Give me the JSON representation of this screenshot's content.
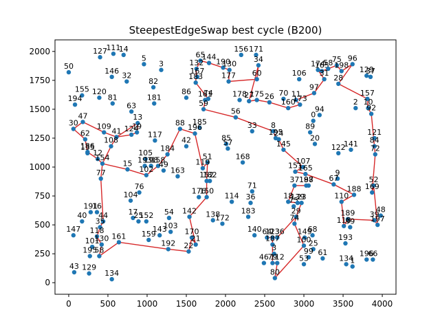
{
  "chart_data": {
    "type": "scatter",
    "title": "SteepestEdgeSwap best cycle (B200)",
    "xlabel": "",
    "ylabel": "",
    "xlim": [
      -175,
      4175
    ],
    "ylim": [
      -100,
      2100
    ],
    "xticks": [
      0,
      500,
      1000,
      1500,
      2000,
      2500,
      3000,
      3500,
      4000
    ],
    "yticks": [
      0,
      250,
      500,
      750,
      1000,
      1250,
      1500,
      1750,
      2000
    ],
    "grid": false,
    "colors": {
      "points": "#1f77b4",
      "cycle": "#d62728"
    },
    "points": [
      {
        "id": "50",
        "x": 0,
        "y": 1820
      },
      {
        "id": "127",
        "x": 400,
        "y": 1950
      },
      {
        "id": "111",
        "x": 570,
        "y": 1980
      },
      {
        "id": "14",
        "x": 700,
        "y": 1970
      },
      {
        "id": "5",
        "x": 960,
        "y": 1890
      },
      {
        "id": "3",
        "x": 1180,
        "y": 1840
      },
      {
        "id": "65",
        "x": 1680,
        "y": 1920
      },
      {
        "id": "144",
        "x": 1790,
        "y": 1900
      },
      {
        "id": "156",
        "x": 2200,
        "y": 1970
      },
      {
        "id": "171",
        "x": 2390,
        "y": 1970
      },
      {
        "id": "34",
        "x": 2420,
        "y": 1880
      },
      {
        "id": "190",
        "x": 1970,
        "y": 1860
      },
      {
        "id": "130",
        "x": 2050,
        "y": 1840
      },
      {
        "id": "132",
        "x": 1630,
        "y": 1850
      },
      {
        "id": "177",
        "x": 2040,
        "y": 1740
      },
      {
        "id": "60",
        "x": 2400,
        "y": 1760
      },
      {
        "id": "146",
        "x": 550,
        "y": 1780
      },
      {
        "id": "32",
        "x": 740,
        "y": 1740
      },
      {
        "id": "167",
        "x": 1640,
        "y": 1780
      },
      {
        "id": "183",
        "x": 1620,
        "y": 1730
      },
      {
        "id": "82",
        "x": 1080,
        "y": 1690
      },
      {
        "id": "86",
        "x": 1500,
        "y": 1600
      },
      {
        "id": "155",
        "x": 170,
        "y": 1620
      },
      {
        "id": "120",
        "x": 390,
        "y": 1600
      },
      {
        "id": "181",
        "x": 1090,
        "y": 1550
      },
      {
        "id": "74",
        "x": 1780,
        "y": 1590
      },
      {
        "id": "161",
        "x": 1740,
        "y": 1580
      },
      {
        "id": "194",
        "x": 80,
        "y": 1540
      },
      {
        "id": "81",
        "x": 560,
        "y": 1550
      },
      {
        "id": "59",
        "x": 1720,
        "y": 1500
      },
      {
        "id": "106",
        "x": 2940,
        "y": 1760
      },
      {
        "id": "70",
        "x": 2740,
        "y": 1590
      },
      {
        "id": "11",
        "x": 2900,
        "y": 1580
      },
      {
        "id": "178",
        "x": 2180,
        "y": 1580
      },
      {
        "id": "27",
        "x": 2300,
        "y": 1570
      },
      {
        "id": "175",
        "x": 2400,
        "y": 1580
      },
      {
        "id": "26",
        "x": 2560,
        "y": 1560
      },
      {
        "id": "160",
        "x": 2800,
        "y": 1510
      },
      {
        "id": "173",
        "x": 2950,
        "y": 1540
      },
      {
        "id": "63",
        "x": 800,
        "y": 1480
      },
      {
        "id": "56",
        "x": 2130,
        "y": 1430
      },
      {
        "id": "47",
        "x": 180,
        "y": 1390
      },
      {
        "id": "30",
        "x": 60,
        "y": 1330
      },
      {
        "id": "13",
        "x": 880,
        "y": 1380
      },
      {
        "id": "109",
        "x": 450,
        "y": 1300
      },
      {
        "id": "41",
        "x": 610,
        "y": 1260
      },
      {
        "id": "124",
        "x": 800,
        "y": 1280
      },
      {
        "id": "19",
        "x": 870,
        "y": 1300
      },
      {
        "id": "185",
        "x": 1670,
        "y": 1340
      },
      {
        "id": "196",
        "x": 1610,
        "y": 1290
      },
      {
        "id": "88",
        "x": 1420,
        "y": 1330
      },
      {
        "id": "33",
        "x": 2340,
        "y": 1310
      },
      {
        "id": "8",
        "x": 2610,
        "y": 1310
      },
      {
        "id": "195",
        "x": 2640,
        "y": 1250
      },
      {
        "id": "24",
        "x": 2680,
        "y": 1240
      },
      {
        "id": "62",
        "x": 210,
        "y": 1240
      },
      {
        "id": "117",
        "x": 1100,
        "y": 1230
      },
      {
        "id": "0",
        "x": 3120,
        "y": 1400
      },
      {
        "id": "94",
        "x": 3200,
        "y": 1450
      },
      {
        "id": "89",
        "x": 3080,
        "y": 1300
      },
      {
        "id": "108",
        "x": 540,
        "y": 1180
      },
      {
        "id": "42",
        "x": 1500,
        "y": 1180
      },
      {
        "id": "85",
        "x": 2010,
        "y": 1200
      },
      {
        "id": "57",
        "x": 2030,
        "y": 1160
      },
      {
        "id": "20",
        "x": 3140,
        "y": 1200
      },
      {
        "id": "145",
        "x": 2740,
        "y": 1150
      },
      {
        "id": "184",
        "x": 1260,
        "y": 1110
      },
      {
        "id": "186",
        "x": 240,
        "y": 1130
      },
      {
        "id": "135",
        "x": 240,
        "y": 1120
      },
      {
        "id": "12",
        "x": 370,
        "y": 1070
      },
      {
        "id": "154",
        "x": 430,
        "y": 1030
      },
      {
        "id": "105",
        "x": 980,
        "y": 1070
      },
      {
        "id": "193",
        "x": 970,
        "y": 1010
      },
      {
        "id": "198",
        "x": 1050,
        "y": 1010
      },
      {
        "id": "158",
        "x": 1140,
        "y": 1010
      },
      {
        "id": "49",
        "x": 1210,
        "y": 970
      },
      {
        "id": "15",
        "x": 750,
        "y": 980
      },
      {
        "id": "51",
        "x": 1770,
        "y": 1040
      },
      {
        "id": "119",
        "x": 1710,
        "y": 990
      },
      {
        "id": "168",
        "x": 2220,
        "y": 1040
      },
      {
        "id": "141",
        "x": 3600,
        "y": 1150
      },
      {
        "id": "122",
        "x": 3440,
        "y": 1120
      },
      {
        "id": "121",
        "x": 3900,
        "y": 1250
      },
      {
        "id": "84",
        "x": 3900,
        "y": 1180
      },
      {
        "id": "72",
        "x": 3910,
        "y": 1110
      },
      {
        "id": "107",
        "x": 2990,
        "y": 1000
      },
      {
        "id": "151",
        "x": 2890,
        "y": 960
      },
      {
        "id": "165",
        "x": 3020,
        "y": 940
      },
      {
        "id": "9",
        "x": 3430,
        "y": 900
      },
      {
        "id": "77",
        "x": 410,
        "y": 900
      },
      {
        "id": "102",
        "x": 990,
        "y": 930
      },
      {
        "id": "163",
        "x": 1390,
        "y": 920
      },
      {
        "id": "152",
        "x": 1760,
        "y": 880
      },
      {
        "id": "182",
        "x": 1800,
        "y": 880
      },
      {
        "id": "37",
        "x": 2880,
        "y": 840
      },
      {
        "id": "187",
        "x": 3030,
        "y": 840
      },
      {
        "id": "98",
        "x": 3060,
        "y": 840
      },
      {
        "id": "67",
        "x": 3380,
        "y": 850
      },
      {
        "id": "71",
        "x": 2340,
        "y": 790
      },
      {
        "id": "76",
        "x": 900,
        "y": 780
      },
      {
        "id": "104",
        "x": 790,
        "y": 710
      },
      {
        "id": "176",
        "x": 1660,
        "y": 740
      },
      {
        "id": "150",
        "x": 1760,
        "y": 740
      },
      {
        "id": "114",
        "x": 2080,
        "y": 700
      },
      {
        "id": "36",
        "x": 2320,
        "y": 690
      },
      {
        "id": "18",
        "x": 2800,
        "y": 700
      },
      {
        "id": "75",
        "x": 2870,
        "y": 660
      },
      {
        "id": "139",
        "x": 2920,
        "y": 690
      },
      {
        "id": "23",
        "x": 2970,
        "y": 690
      },
      {
        "id": "188",
        "x": 3640,
        "y": 760
      },
      {
        "id": "110",
        "x": 3480,
        "y": 700
      },
      {
        "id": "52",
        "x": 3890,
        "y": 840
      },
      {
        "id": "169",
        "x": 3870,
        "y": 780
      },
      {
        "id": "191",
        "x": 280,
        "y": 610
      },
      {
        "id": "16",
        "x": 360,
        "y": 610
      },
      {
        "id": "40",
        "x": 170,
        "y": 530
      },
      {
        "id": "44",
        "x": 440,
        "y": 530
      },
      {
        "id": "35",
        "x": 400,
        "y": 480
      },
      {
        "id": "17",
        "x": 820,
        "y": 560
      },
      {
        "id": "25",
        "x": 890,
        "y": 530
      },
      {
        "id": "152b",
        "x": 990,
        "y": 530
      },
      {
        "id": "54",
        "x": 1280,
        "y": 560
      },
      {
        "id": "142",
        "x": 1540,
        "y": 570
      },
      {
        "id": "183b",
        "x": 2290,
        "y": 570
      },
      {
        "id": "29",
        "x": 2900,
        "y": 570
      },
      {
        "id": "74b",
        "x": 2880,
        "y": 510
      },
      {
        "id": "189",
        "x": 3560,
        "y": 550
      },
      {
        "id": "39",
        "x": 3900,
        "y": 540
      },
      {
        "id": "48",
        "x": 3980,
        "y": 580
      },
      {
        "id": "197",
        "x": 3940,
        "y": 500
      },
      {
        "id": "118",
        "x": 3510,
        "y": 490
      },
      {
        "id": "99",
        "x": 3590,
        "y": 480
      },
      {
        "id": "138",
        "x": 1840,
        "y": 540
      },
      {
        "id": "172",
        "x": 1960,
        "y": 510
      },
      {
        "id": "143",
        "x": 1160,
        "y": 410
      },
      {
        "id": "103",
        "x": 1300,
        "y": 440
      },
      {
        "id": "140",
        "x": 2370,
        "y": 410
      },
      {
        "id": "147",
        "x": 60,
        "y": 410
      },
      {
        "id": "118b",
        "x": 360,
        "y": 400
      },
      {
        "id": "159",
        "x": 1020,
        "y": 370
      },
      {
        "id": "170",
        "x": 1570,
        "y": 390
      },
      {
        "id": "21",
        "x": 1620,
        "y": 330
      },
      {
        "id": "64",
        "x": 2530,
        "y": 390
      },
      {
        "id": "123",
        "x": 2600,
        "y": 390
      },
      {
        "id": "136",
        "x": 2660,
        "y": 390
      },
      {
        "id": "149",
        "x": 3010,
        "y": 390
      },
      {
        "id": "68",
        "x": 3110,
        "y": 410
      },
      {
        "id": "161b",
        "x": 640,
        "y": 350
      },
      {
        "id": "130b",
        "x": 420,
        "y": 330
      },
      {
        "id": "101",
        "x": 300,
        "y": 310
      },
      {
        "id": "192",
        "x": 1270,
        "y": 290
      },
      {
        "id": "22",
        "x": 1530,
        "y": 270
      },
      {
        "id": "187b",
        "x": 2600,
        "y": 330
      },
      {
        "id": "100",
        "x": 3000,
        "y": 320
      },
      {
        "id": "25b",
        "x": 3120,
        "y": 290
      },
      {
        "id": "193b",
        "x": 3530,
        "y": 340
      },
      {
        "id": "195b",
        "x": 270,
        "y": 230
      },
      {
        "id": "58b",
        "x": 390,
        "y": 230
      },
      {
        "id": "3b",
        "x": 2620,
        "y": 250
      },
      {
        "id": "99b",
        "x": 3060,
        "y": 220
      },
      {
        "id": "61",
        "x": 3240,
        "y": 210
      },
      {
        "id": "196b",
        "x": 3800,
        "y": 200
      },
      {
        "id": "66",
        "x": 3880,
        "y": 200
      },
      {
        "id": "46",
        "x": 2490,
        "y": 170
      },
      {
        "id": "79",
        "x": 2600,
        "y": 170
      },
      {
        "id": "112",
        "x": 2660,
        "y": 170
      },
      {
        "id": "53",
        "x": 3000,
        "y": 160
      },
      {
        "id": "134",
        "x": 3540,
        "y": 160
      },
      {
        "id": "1",
        "x": 3620,
        "y": 140
      },
      {
        "id": "43",
        "x": 70,
        "y": 90
      },
      {
        "id": "129",
        "x": 260,
        "y": 80
      },
      {
        "id": "134b",
        "x": 550,
        "y": 30
      },
      {
        "id": "80",
        "x": 2630,
        "y": 40
      },
      {
        "id": "174",
        "x": 3180,
        "y": 1840
      },
      {
        "id": "165b",
        "x": 3230,
        "y": 1830
      },
      {
        "id": "58",
        "x": 3310,
        "y": 1850
      },
      {
        "id": "75b",
        "x": 3420,
        "y": 1880
      },
      {
        "id": "198b",
        "x": 3480,
        "y": 1830
      },
      {
        "id": "96",
        "x": 3620,
        "y": 1890
      },
      {
        "id": "31",
        "x": 3260,
        "y": 1760
      },
      {
        "id": "28",
        "x": 3440,
        "y": 1720
      },
      {
        "id": "129b",
        "x": 3800,
        "y": 1790
      },
      {
        "id": "37b",
        "x": 3850,
        "y": 1780
      },
      {
        "id": "97",
        "x": 3130,
        "y": 1640
      },
      {
        "id": "157",
        "x": 3810,
        "y": 1590
      },
      {
        "id": "2",
        "x": 3660,
        "y": 1510
      },
      {
        "id": "10",
        "x": 3820,
        "y": 1510
      },
      {
        "id": "92",
        "x": 3860,
        "y": 1460
      }
    ],
    "labels": {
      "50": "50",
      "127": "127",
      "111": "111",
      "14": "14",
      "5": "5",
      "3": "3",
      "65": "65",
      "144": "144",
      "156": "156",
      "171": "171",
      "34": "34",
      "190": "190",
      "130": "130",
      "132": "132",
      "177": "177",
      "60": "60",
      "146": "146",
      "32": "32",
      "167": "167",
      "183": "183",
      "82": "82",
      "86": "86",
      "155": "155",
      "120": "120",
      "181": "181",
      "74": "74",
      "161": "161",
      "194": "194",
      "81": "81",
      "59": "59",
      "106": "106",
      "70": "70",
      "11": "11",
      "178": "178",
      "27": "27",
      "175": "175",
      "26": "26",
      "160": "160",
      "173": "173",
      "63": "63",
      "56": "56",
      "47": "47",
      "30": "30",
      "13": "13",
      "109": "109",
      "41": "41",
      "124": "124",
      "19": "19",
      "185": "185",
      "196": "196",
      "88": "88",
      "33": "33",
      "8": "8",
      "195": "195",
      "24": "24",
      "62": "62",
      "117": "117",
      "0": "0",
      "94": "94",
      "89": "89",
      "108": "108",
      "42": "42",
      "85": "85",
      "57": "57",
      "20": "20",
      "145": "145",
      "184": "184",
      "186": "186",
      "135": "135",
      "12": "12",
      "154": "154",
      "105": "105",
      "193": "193",
      "198": "198",
      "158": "158",
      "49": "49",
      "15": "15",
      "51": "51",
      "119": "119",
      "168": "168",
      "141": "141",
      "122": "122",
      "121": "121",
      "84": "84",
      "72": "72",
      "107": "107",
      "151": "151",
      "165": "165",
      "9": "9",
      "77": "77",
      "102": "102",
      "163": "163",
      "152": "152",
      "182": "182",
      "37": "37",
      "187": "187",
      "98": "98",
      "67": "67",
      "71": "71",
      "76": "76",
      "104": "104",
      "176": "176",
      "150": "150",
      "114": "114",
      "36": "36",
      "18": "18",
      "75": "75",
      "139": "139",
      "23": "23",
      "188": "188",
      "110": "110",
      "52": "52",
      "169": "169",
      "191": "191",
      "16": "16",
      "40": "40",
      "44": "44",
      "35": "35",
      "17": "17",
      "25": "25",
      "152b": "152",
      "54": "54",
      "142": "142",
      "183b": "183",
      "29": "29",
      "74b": "74",
      "189": "189",
      "39": "39",
      "48": "48",
      "197": "197",
      "118": "118",
      "99": "99",
      "138": "138",
      "172": "172",
      "143": "143",
      "103": "103",
      "140": "140",
      "147": "147",
      "118b": "118",
      "159": "159",
      "170": "170",
      "21": "21",
      "64": "64",
      "123": "123",
      "136": "136",
      "149": "149",
      "68": "68",
      "161b": "161",
      "130b": "130",
      "101": "101",
      "192": "192",
      "22": "22",
      "187b": "187",
      "100": "100",
      "25b": "25",
      "193b": "193",
      "195b": "195",
      "58b": "58",
      "3b": "3",
      "99b": "99",
      "61": "61",
      "196b": "196",
      "66": "66",
      "46": "46",
      "79": "79",
      "112": "112",
      "53": "53",
      "134": "134",
      "1": "1",
      "43": "43",
      "129": "129",
      "134b": "134",
      "80": "80",
      "174": "174",
      "165b": "165",
      "58": "58",
      "75b": "75",
      "198b": "198",
      "96": "96",
      "31": "31",
      "28": "28",
      "129b": "129",
      "37b": "37",
      "97": "97",
      "157": "157",
      "2": "2",
      "10": "10",
      "92": "92"
    },
    "cycle": [
      "30",
      "47",
      "109",
      "41",
      "124",
      "19",
      "13",
      "41",
      "108",
      "154",
      "77",
      "44",
      "35",
      "118b",
      "130b",
      "58b",
      "161b",
      "192",
      "22",
      "170",
      "21",
      "142",
      "150",
      "152",
      "51",
      "119",
      "196",
      "88",
      "184",
      "158",
      "102",
      "15",
      "154",
      "12",
      "186",
      "62",
      "30"
    ],
    "cycle2": [
      "65",
      "144",
      "190",
      "130",
      "177",
      "60",
      "34",
      "27",
      "175",
      "26",
      "160",
      "173",
      "11",
      "97",
      "31",
      "174",
      "165b",
      "58",
      "75b",
      "198b",
      "96",
      "28",
      "157",
      "10",
      "92",
      "84",
      "72",
      "169",
      "52",
      "197",
      "39",
      "189",
      "118",
      "110",
      "188",
      "67",
      "165",
      "151",
      "107",
      "145",
      "24",
      "195",
      "8",
      "56",
      "59",
      "161",
      "74",
      "183",
      "132",
      "65"
    ],
    "cycle3": [
      "187",
      "98",
      "37",
      "18",
      "139",
      "23",
      "29",
      "74b",
      "100",
      "80",
      "112",
      "79",
      "187b",
      "123",
      "64",
      "136",
      "29"
    ]
  }
}
